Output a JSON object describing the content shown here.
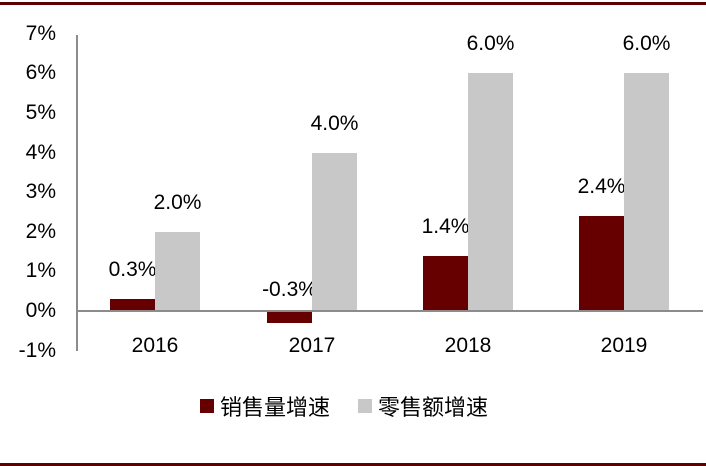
{
  "chart_data": {
    "type": "bar",
    "title": "",
    "xlabel": "",
    "ylabel": "",
    "categories": [
      "2016",
      "2017",
      "2018",
      "2019"
    ],
    "series": [
      {
        "name": "销售量增速",
        "color": "#660000",
        "values": [
          0.3,
          -0.3,
          1.4,
          2.4
        ],
        "labels": [
          "0.3%",
          "-0.3%",
          "1.4%",
          "2.4%"
        ]
      },
      {
        "name": "零售额增速",
        "color": "#c8c8c8",
        "values": [
          2.0,
          4.0,
          6.0,
          6.0
        ],
        "labels": [
          "2.0%",
          "4.0%",
          "6.0%",
          "6.0%"
        ]
      }
    ],
    "ylim": [
      -1,
      7
    ],
    "yticks": [
      "7%",
      "6%",
      "5%",
      "4%",
      "3%",
      "2%",
      "1%",
      "0%",
      "-1%"
    ],
    "grid": false,
    "legend_position": "bottom"
  },
  "colors": {
    "rule": "#5c0000",
    "axis": "#8c8c8c"
  }
}
